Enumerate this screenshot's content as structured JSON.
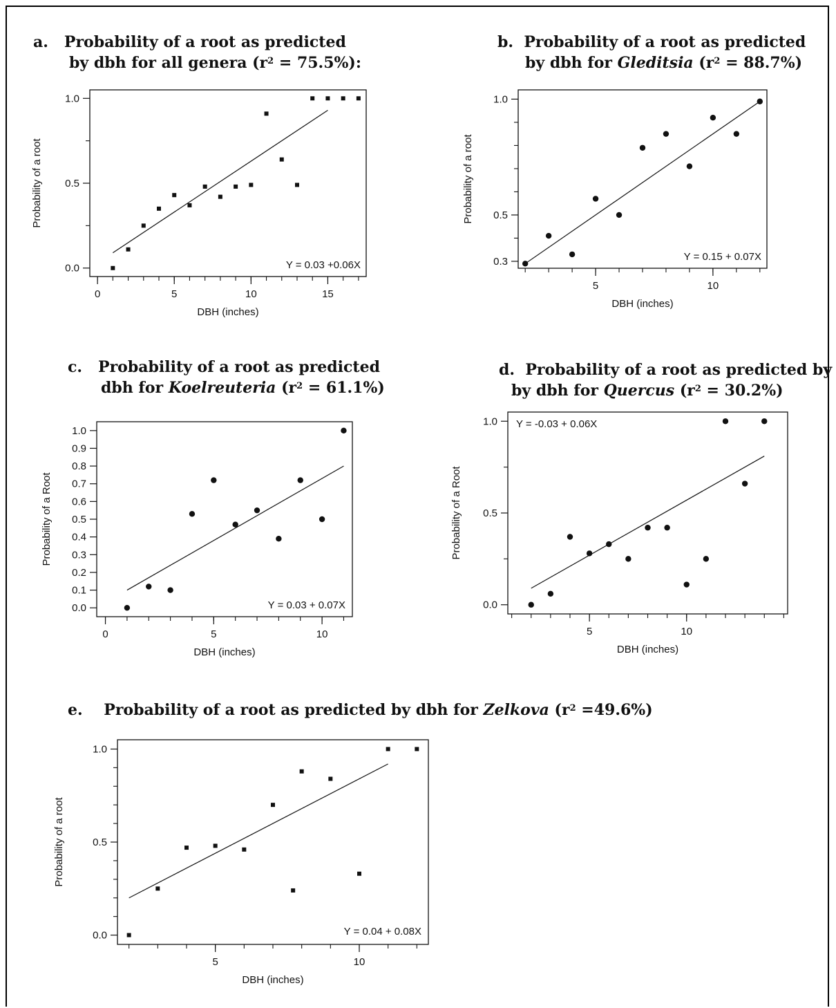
{
  "figure": {
    "panels": [
      {
        "id": "a",
        "title": {
          "line1": {
            "letter": "a.",
            "text": "Probability of a root as predicted"
          },
          "line2": {
            "pre": "by dbh for all genera (r",
            "sup": "2",
            "post": " = 75.5%):"
          }
        }
      },
      {
        "id": "b",
        "title": {
          "line1": {
            "letter": "b.",
            "text": "Probability of a root as predicted"
          },
          "line2": {
            "pre": "by dbh for ",
            "genus": "Gleditsia",
            "mid": " (r",
            "sup": "2",
            "post": " = 88.7%)"
          }
        }
      },
      {
        "id": "c",
        "title": {
          "line1": {
            "letter": "c.",
            "text": "Probability of a root as predicted"
          },
          "line2": {
            "pre": "dbh for ",
            "genus": "Koelreuteria",
            "mid": " (r",
            "sup": "2",
            "post": " = 61.1%)"
          }
        }
      },
      {
        "id": "d",
        "title": {
          "line1": {
            "letter": "d.",
            "text": "Probability of a root as predicted by"
          },
          "line2": {
            "pre": "by dbh for ",
            "genus": "Quercus",
            "mid": " (r",
            "sup": "2",
            "post": " = 30.2%)"
          }
        }
      },
      {
        "id": "e",
        "title": {
          "line1": {
            "letter": "e.",
            "pre": "Probability of a root as predicted by dbh for ",
            "genus": "Zelkova",
            "mid": " (r",
            "sup": "2",
            "post": " =49.6%)"
          }
        }
      }
    ]
  },
  "chart_data": [
    {
      "id": "a",
      "type": "scatter",
      "xlabel": "DBH (inches)",
      "ylabel": "Probability of a root",
      "xlim": [
        -0.5,
        17.5
      ],
      "ylim": [
        -0.05,
        1.05
      ],
      "x_ticks": [
        0,
        5,
        10,
        15
      ],
      "x_minor_ticks": [
        0,
        1,
        2,
        3,
        4,
        5,
        6,
        7,
        8,
        9,
        10,
        11,
        12,
        13,
        14,
        15,
        16,
        17
      ],
      "y_ticks": [
        0.0,
        0.5,
        1.0
      ],
      "y_tick_labels": [
        "0.0",
        "0.5",
        "1.0"
      ],
      "y_minor_ticks": [
        0.25,
        0.75
      ],
      "points": {
        "x": [
          1,
          2,
          3,
          4,
          5,
          6,
          7,
          8,
          9,
          10,
          11,
          12,
          13,
          14,
          15,
          16,
          17
        ],
        "y": [
          0.0,
          0.11,
          0.25,
          0.35,
          0.43,
          0.37,
          0.48,
          0.42,
          0.48,
          0.49,
          0.91,
          0.64,
          0.49,
          1.0,
          1.0,
          1.0,
          1.0
        ]
      },
      "fit": {
        "intercept": 0.03,
        "slope": 0.06,
        "x_range": [
          1,
          15
        ]
      },
      "equation": "Y = 0.03 +0.06X",
      "equation_position": "bottom-right",
      "marker": "square"
    },
    {
      "id": "b",
      "type": "scatter",
      "xlabel": "DBH (inches)",
      "ylabel": "Probability of a root",
      "xlim": [
        1.7,
        12.3
      ],
      "ylim": [
        0.27,
        1.04
      ],
      "x_ticks": [
        5,
        10
      ],
      "x_minor_ticks": [
        2,
        3,
        4,
        5,
        6,
        7,
        8,
        9,
        10,
        11,
        12
      ],
      "y_ticks": [
        0.3,
        0.5,
        1.0
      ],
      "y_tick_labels": [
        "0.3",
        "0.5",
        "1.0"
      ],
      "y_minor_ticks": [
        0.4,
        0.6,
        0.7,
        0.8,
        0.9
      ],
      "points": {
        "x": [
          2,
          3,
          4,
          5,
          6,
          7,
          8,
          9,
          10,
          11,
          12
        ],
        "y": [
          0.29,
          0.41,
          0.33,
          0.57,
          0.5,
          0.79,
          0.85,
          0.71,
          0.92,
          0.85,
          0.99
        ]
      },
      "fit": {
        "intercept": 0.15,
        "slope": 0.07,
        "x_range": [
          2,
          12
        ]
      },
      "equation": "Y = 0.15 + 0.07X",
      "equation_position": "bottom-right",
      "marker": "circle"
    },
    {
      "id": "c",
      "type": "scatter",
      "xlabel": "DBH (inches)",
      "ylabel": "Probability of a Root",
      "xlim": [
        -0.4,
        11.4
      ],
      "ylim": [
        -0.05,
        1.05
      ],
      "x_ticks": [
        0,
        5,
        10
      ],
      "x_minor_ticks": [
        0,
        1,
        2,
        3,
        4,
        5,
        6,
        7,
        8,
        9,
        10,
        11
      ],
      "y_ticks": [
        0.0,
        0.1,
        0.2,
        0.3,
        0.4,
        0.5,
        0.6,
        0.7,
        0.8,
        0.9,
        1.0
      ],
      "y_tick_labels": [
        "0.0",
        "0.1",
        "0.2",
        "0.3",
        "0.4",
        "0.5",
        "0.6",
        "0.7",
        "0.8",
        "0.9",
        "1.0"
      ],
      "points": {
        "x": [
          1,
          2,
          3,
          4,
          5,
          6,
          7,
          8,
          9,
          10,
          11
        ],
        "y": [
          0.0,
          0.12,
          0.1,
          0.53,
          0.72,
          0.47,
          0.55,
          0.39,
          0.72,
          0.5,
          1.0
        ]
      },
      "fit": {
        "intercept": 0.03,
        "slope": 0.07,
        "x_range": [
          1,
          11
        ]
      },
      "equation": "Y = 0.03 + 0.07X",
      "equation_position": "bottom-right",
      "marker": "circle"
    },
    {
      "id": "d",
      "type": "scatter",
      "xlabel": "DBH (inches)",
      "ylabel": "Probability of a Root",
      "xlim": [
        0.8,
        15.2
      ],
      "ylim": [
        -0.05,
        1.05
      ],
      "x_ticks": [
        5,
        10
      ],
      "x_minor_ticks": [
        1,
        2,
        3,
        4,
        5,
        6,
        7,
        8,
        9,
        10,
        11,
        12,
        13,
        14,
        15
      ],
      "y_ticks": [
        0.0,
        0.5,
        1.0
      ],
      "y_tick_labels": [
        "0.0",
        "0.5",
        "1.0"
      ],
      "y_minor_ticks": [
        0.25,
        0.75
      ],
      "points": {
        "x": [
          2,
          3,
          4,
          5,
          6,
          7,
          8,
          9,
          10,
          11,
          12,
          13,
          14
        ],
        "y": [
          0.0,
          0.06,
          0.37,
          0.28,
          0.33,
          0.25,
          0.42,
          0.42,
          0.11,
          0.25,
          1.0,
          0.66,
          1.0
        ]
      },
      "fit": {
        "intercept": -0.03,
        "slope": 0.06,
        "x_range": [
          2,
          14
        ]
      },
      "equation": "Y = -0.03 + 0.06X",
      "equation_position": "top-left",
      "marker": "circle"
    },
    {
      "id": "e",
      "type": "scatter",
      "xlabel": "DBH (inches)",
      "ylabel": "Probability of a root",
      "xlim": [
        1.6,
        12.4
      ],
      "ylim": [
        -0.05,
        1.05
      ],
      "x_ticks": [
        5,
        10
      ],
      "x_minor_ticks": [
        2,
        3,
        4,
        5,
        6,
        7,
        8,
        9,
        10,
        11,
        12
      ],
      "y_ticks": [
        0.0,
        0.5,
        1.0
      ],
      "y_tick_labels": [
        "0.0",
        "0.5",
        "1.0"
      ],
      "y_minor_ticks": [
        0.1,
        0.2,
        0.3,
        0.4,
        0.6,
        0.7,
        0.8,
        0.9
      ],
      "points": {
        "x": [
          2,
          3,
          4,
          5,
          6,
          7,
          7.7,
          8,
          9,
          10,
          11,
          12
        ],
        "y": [
          0.0,
          0.25,
          0.47,
          0.48,
          0.46,
          0.7,
          0.24,
          0.88,
          0.84,
          0.33,
          1.0,
          1.0
        ]
      },
      "fit": {
        "intercept": 0.04,
        "slope": 0.08,
        "x_range": [
          2,
          11
        ]
      },
      "equation": "Y = 0.04 + 0.08X",
      "equation_position": "bottom-right",
      "marker": "square"
    }
  ]
}
